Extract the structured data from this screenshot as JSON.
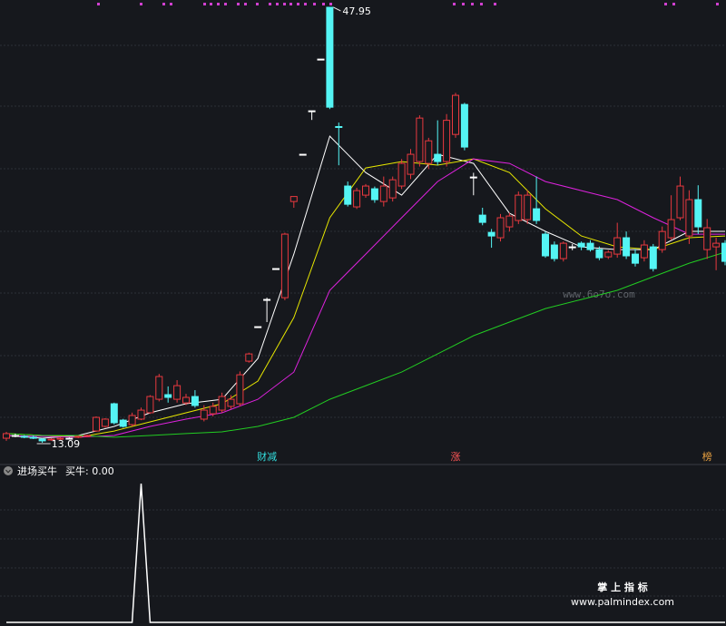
{
  "chart_data": [
    {
      "type": "candlestick",
      "open": [
        13.45,
        13.67,
        13.6,
        13.53,
        13.38,
        13.31,
        13.38,
        13.45,
        13.53,
        13.6,
        14.03,
        14.4,
        16.21,
        14.9,
        14.54,
        14.98,
        15.49,
        16.57,
        16.94,
        16.57,
        16.28,
        16.79,
        14.98,
        15.41,
        15.7,
        16.0,
        16.21,
        19.62,
        22.38,
        24.56,
        27.03,
        24.7,
        32.4,
        36.18,
        39.66,
        43.8,
        47.95,
        38.4,
        33.64,
        31.97,
        32.91,
        33.42,
        32.4,
        32.69,
        33.64,
        34.58,
        35.6,
        35.45,
        36.18,
        35.6,
        37.77,
        40.17,
        34.36,
        31.31,
        29.93,
        29.5,
        30.37,
        30.88,
        30.95,
        31.82,
        29.79,
        28.92,
        27.83,
        28.77,
        29.06,
        29.06,
        28.55,
        27.97,
        28.19,
        29.5,
        28.19,
        27.9,
        28.77,
        28.55,
        29.5,
        31.1,
        29.64,
        32.55,
        28.55,
        28.77,
        29.06
      ],
      "high": [
        13.96,
        13.82,
        13.7,
        13.67,
        13.45,
        13.45,
        13.53,
        13.53,
        13.67,
        13.75,
        15.2,
        15.05,
        16.3,
        15.0,
        15.5,
        15.9,
        16.9,
        18.6,
        17.6,
        18.1,
        17.0,
        17.3,
        16.1,
        16.3,
        17.1,
        16.9,
        18.8,
        20.3,
        22.38,
        24.7,
        27.03,
        29.9,
        32.8,
        36.18,
        39.66,
        43.8,
        47.95,
        38.72,
        34.0,
        33.5,
        33.8,
        33.6,
        34.4,
        34.4,
        35.8,
        36.6,
        39.3,
        37.5,
        38.9,
        39.4,
        41.1,
        40.3,
        34.7,
        31.9,
        30.2,
        31.4,
        31.5,
        33.2,
        33.3,
        34.4,
        30.0,
        29.2,
        29.2,
        29.0,
        29.2,
        29.3,
        28.8,
        28.5,
        30.7,
        30.0,
        28.6,
        29.3,
        29.0,
        30.4,
        32.9,
        34.4,
        33.3,
        33.7,
        31.0,
        29.5,
        29.3
      ],
      "low": [
        13.24,
        13.53,
        13.45,
        13.38,
        13.09,
        13.24,
        13.31,
        13.38,
        13.45,
        13.53,
        13.96,
        14.3,
        14.55,
        14.3,
        14.4,
        14.9,
        15.4,
        16.4,
        16.3,
        16.3,
        16.1,
        15.9,
        14.8,
        15.2,
        15.5,
        15.8,
        16.0,
        19.5,
        22.38,
        22.75,
        27.03,
        24.5,
        31.9,
        36.18,
        38.93,
        43.8,
        39.8,
        35.3,
        32.0,
        31.8,
        32.7,
        32.3,
        32.0,
        32.4,
        33.4,
        34.2,
        35.2,
        35.0,
        35.3,
        35.2,
        37.5,
        36.5,
        32.9,
        30.5,
        28.7,
        29.2,
        30.0,
        30.6,
        30.6,
        30.6,
        27.9,
        27.6,
        27.6,
        28.5,
        28.5,
        28.4,
        27.7,
        27.8,
        27.9,
        27.8,
        27.2,
        27.6,
        26.8,
        28.3,
        29.3,
        30.9,
        29.0,
        29.8,
        27.8,
        26.9,
        27.3
      ],
      "close": [
        13.82,
        13.67,
        13.53,
        13.45,
        13.24,
        13.38,
        13.45,
        13.45,
        13.6,
        13.67,
        15.12,
        14.98,
        14.69,
        14.4,
        15.27,
        15.7,
        16.79,
        18.39,
        16.72,
        17.66,
        16.72,
        16.07,
        15.7,
        16.0,
        16.79,
        16.57,
        18.53,
        20.2,
        22.38,
        24.56,
        27.03,
        29.79,
        32.8,
        36.18,
        39.66,
        43.8,
        39.95,
        38.35,
        32.18,
        33.27,
        33.64,
        32.55,
        33.64,
        34.14,
        35.45,
        36.18,
        39.08,
        37.26,
        35.6,
        38.9,
        40.9,
        36.76,
        34.36,
        30.73,
        29.64,
        31.1,
        31.24,
        32.91,
        32.91,
        30.88,
        28.05,
        27.83,
        29.06,
        28.77,
        28.77,
        28.55,
        27.9,
        28.34,
        29.5,
        28.05,
        27.46,
        28.92,
        27.03,
        30.0,
        30.95,
        33.64,
        32.55,
        30.37,
        30.3,
        29.06,
        27.61
      ],
      "colors": {
        "up": "#e8393f",
        "down": "#54f4f4",
        "flat": "#ffffff"
      },
      "ma_x": [
        0,
        4,
        8,
        12,
        16,
        20,
        24,
        28,
        32,
        36,
        40,
        44,
        48,
        52,
        56,
        60,
        64,
        68,
        72,
        76,
        80
      ],
      "ma": [
        {
          "color": "#ffffff",
          "values": [
            13.67,
            13.45,
            13.67,
            14.4,
            15.49,
            16.21,
            16.57,
            19.84,
            28.19,
            37.63,
            34.72,
            32.91,
            36.18,
            35.45,
            31.46,
            30.01,
            28.77,
            28.55,
            28.55,
            30.01,
            30.01
          ]
        },
        {
          "color": "#e6e600",
          "values": [
            13.82,
            13.67,
            13.53,
            14.03,
            14.76,
            15.49,
            16.21,
            18.03,
            23.11,
            31.1,
            35.09,
            35.6,
            35.31,
            35.81,
            34.72,
            31.82,
            29.64,
            28.77,
            28.55,
            29.5,
            29.64
          ]
        },
        {
          "color": "#dd22dd",
          "values": [
            13.67,
            13.6,
            13.53,
            13.67,
            14.4,
            14.98,
            15.49,
            16.57,
            18.75,
            25.29,
            28.19,
            31.1,
            34.0,
            35.81,
            35.45,
            34.0,
            33.27,
            32.55,
            31.1,
            29.79,
            29.79
          ]
        },
        {
          "color": "#22cc22",
          "values": [
            13.82,
            13.67,
            13.67,
            13.53,
            13.67,
            13.82,
            13.96,
            14.4,
            15.12,
            16.57,
            17.66,
            18.75,
            20.2,
            21.66,
            22.75,
            23.83,
            24.56,
            25.29,
            26.38,
            27.46,
            28.34
          ]
        }
      ],
      "high_label": "47.95",
      "low_label": "13.09",
      "signals": [
        {
          "text": "财减",
          "index": 29,
          "color": "#33dddd"
        },
        {
          "text": "涨",
          "index": 50,
          "color": "#ff5555"
        },
        {
          "text": "榜",
          "index": 78,
          "color": "#e8a040"
        }
      ]
    },
    {
      "type": "line",
      "title": "进场买牛",
      "legend": "买牛: 0.00",
      "color": "#ffffff",
      "values": [
        0,
        0,
        0,
        0,
        0,
        0,
        0,
        0,
        0,
        0,
        0,
        0,
        0,
        0,
        0,
        1,
        0,
        0,
        0,
        0,
        0,
        0,
        0,
        0,
        0,
        0,
        0,
        0,
        0,
        0,
        0,
        0,
        0,
        0,
        0,
        0,
        0,
        0,
        0,
        0,
        0,
        0,
        0,
        0,
        0,
        0,
        0,
        0,
        0,
        0,
        0,
        0,
        0,
        0,
        0,
        0,
        0,
        0,
        0,
        0,
        0,
        0,
        0,
        0,
        0,
        0,
        0,
        0,
        0,
        0,
        0,
        0,
        0,
        0,
        0,
        0,
        0,
        0,
        0,
        0,
        0
      ]
    }
  ],
  "watermarks": [
    "www.6o7o.com",
    "掌 上 指 标",
    "www.palmindex.com"
  ]
}
